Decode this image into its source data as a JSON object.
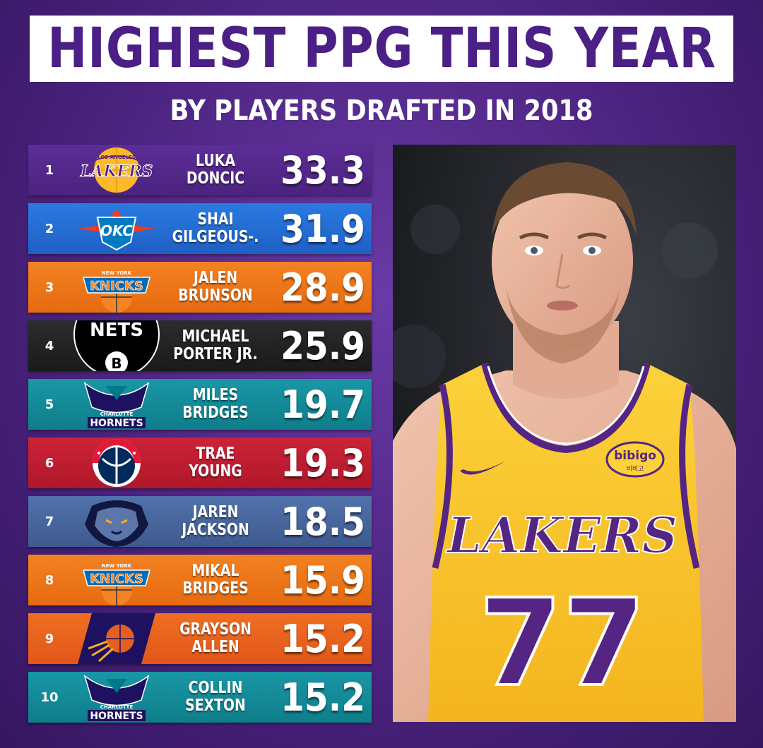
{
  "title": "HIGHEST PPG THIS YEAR",
  "subtitle": "BY PLAYERS DRAFTED IN 2018",
  "players": [
    {
      "rank": "1",
      "first": "LUKA",
      "last": "DONCIC",
      "ppg": "33.3",
      "team_logo": "lakers-logo",
      "logo_text": "LAKERS",
      "logo_top": "LOS ANGELES",
      "bg": "#4b237f",
      "bg2": "#5c2d97"
    },
    {
      "rank": "2",
      "first": "SHAI",
      "last": "GILGEOUS-.",
      "ppg": "31.9",
      "team_logo": "thunder-logo",
      "logo_text": "OKC",
      "bg": "#1f5fc4",
      "bg2": "#2a7be0"
    },
    {
      "rank": "3",
      "first": "JALEN",
      "last": "BRUNSON",
      "ppg": "28.9",
      "team_logo": "knicks-logo",
      "logo_text": "KNICKS",
      "logo_top": "NEW YORK",
      "bg": "#e66a10",
      "bg2": "#f28222"
    },
    {
      "rank": "4",
      "first": "MICHAEL",
      "last": "PORTER JR.",
      "ppg": "25.9",
      "team_logo": "nets-logo",
      "logo_text": "NETS",
      "bg": "#1a1a1a",
      "bg2": "#2c2c2c"
    },
    {
      "rank": "5",
      "first": "MILES",
      "last": "BRIDGES",
      "ppg": "19.7",
      "team_logo": "hornets-logo",
      "logo_text": "HORNETS",
      "logo_top": "CHARLOTTE",
      "bg": "#0f7d8a",
      "bg2": "#1997a5"
    },
    {
      "rank": "6",
      "first": "TRAE",
      "last": "YOUNG",
      "ppg": "19.3",
      "team_logo": "wizards-logo",
      "bg": "#b0172a",
      "bg2": "#cc2338"
    },
    {
      "rank": "7",
      "first": "JAREN",
      "last": "JACKSON",
      "ppg": "18.5",
      "team_logo": "grizzlies-logo",
      "bg": "#3e5a8f",
      "bg2": "#5272ab"
    },
    {
      "rank": "8",
      "first": "MIKAL",
      "last": "BRIDGES",
      "ppg": "15.9",
      "team_logo": "knicks-logo",
      "logo_text": "KNICKS",
      "logo_top": "NEW YORK",
      "bg": "#e66a10",
      "bg2": "#f28222"
    },
    {
      "rank": "9",
      "first": "GRAYSON",
      "last": "ALLEN",
      "ppg": "15.2",
      "team_logo": "suns-logo",
      "bg": "#e2561a",
      "bg2": "#ef6f22"
    },
    {
      "rank": "10",
      "first": "COLLIN",
      "last": "SEXTON",
      "ppg": "15.2",
      "team_logo": "hornets-logo",
      "logo_text": "HORNETS",
      "logo_top": "CHARLOTTE",
      "bg": "#0f7d8a",
      "bg2": "#1997a5"
    }
  ],
  "photo": {
    "jersey_text": "LAKERS",
    "jersey_number": "77",
    "sponsor_patch": "bibigo",
    "sponsor_patch_sub": "비비고"
  }
}
